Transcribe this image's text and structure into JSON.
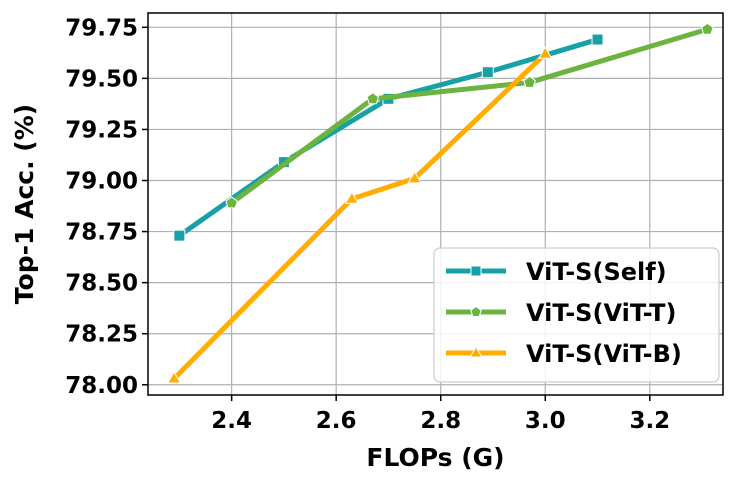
{
  "chart_data": {
    "type": "line",
    "xlabel": "FLOPs (G)",
    "ylabel": "Top-1 Acc. (%)",
    "xlim": [
      2.24,
      3.34
    ],
    "ylim": [
      77.95,
      79.82
    ],
    "xticks": [
      2.4,
      2.6,
      2.8,
      3.0,
      3.2
    ],
    "xtick_labels": [
      "2.4",
      "2.6",
      "2.8",
      "3.0",
      "3.2"
    ],
    "yticks": [
      78.0,
      78.25,
      78.5,
      78.75,
      79.0,
      79.25,
      79.5,
      79.75
    ],
    "ytick_labels": [
      "78.00",
      "78.25",
      "78.50",
      "78.75",
      "79.00",
      "79.25",
      "79.50",
      "79.75"
    ],
    "grid": true,
    "legend_position": "lower-right",
    "series": [
      {
        "name": "ViT-S(Self)",
        "color": "#17a0a5",
        "marker": "square",
        "x": [
          2.3,
          2.5,
          2.7,
          2.89,
          3.1
        ],
        "y": [
          78.73,
          79.09,
          79.4,
          79.53,
          79.69
        ]
      },
      {
        "name": "ViT-S(ViT-T)",
        "color": "#6db33f",
        "marker": "pentagon",
        "x": [
          2.4,
          2.67,
          2.97,
          3.31
        ],
        "y": [
          78.89,
          79.4,
          79.48,
          79.74
        ]
      },
      {
        "name": "ViT-S(ViT-B)",
        "color": "#ffad00",
        "marker": "triangle",
        "x": [
          2.29,
          2.63,
          2.75,
          3.0
        ],
        "y": [
          78.03,
          78.91,
          79.01,
          79.62
        ]
      }
    ]
  }
}
